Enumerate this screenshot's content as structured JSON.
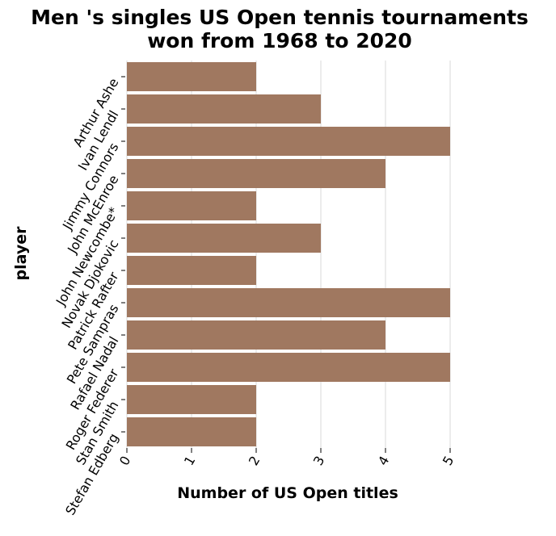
{
  "chart_data": {
    "type": "bar",
    "orientation": "horizontal",
    "title_lines": [
      "Men 's singles US Open tennis tournaments",
      "won from 1968 to 2020"
    ],
    "xlabel": "Number of US Open titles",
    "ylabel": "player",
    "categories": [
      "Arthur Ashe",
      "Ivan Lendl",
      "Jimmy Connors",
      "John McEnroe",
      "John Newcombe*",
      "Novak Djokovic",
      "Patrick Rafter",
      "Pete Sampras",
      "Rafael Nadal",
      "Roger Federer",
      "Stan Smith",
      "Stefan Edberg"
    ],
    "values": [
      2,
      3,
      5,
      4,
      2,
      3,
      2,
      5,
      4,
      5,
      2,
      2
    ],
    "xlim": [
      0,
      5
    ],
    "xticks": [
      0,
      1,
      2,
      3,
      4,
      5
    ],
    "grid": true,
    "bar_color": "#a07860",
    "grid_color": "#d9d9d9"
  }
}
